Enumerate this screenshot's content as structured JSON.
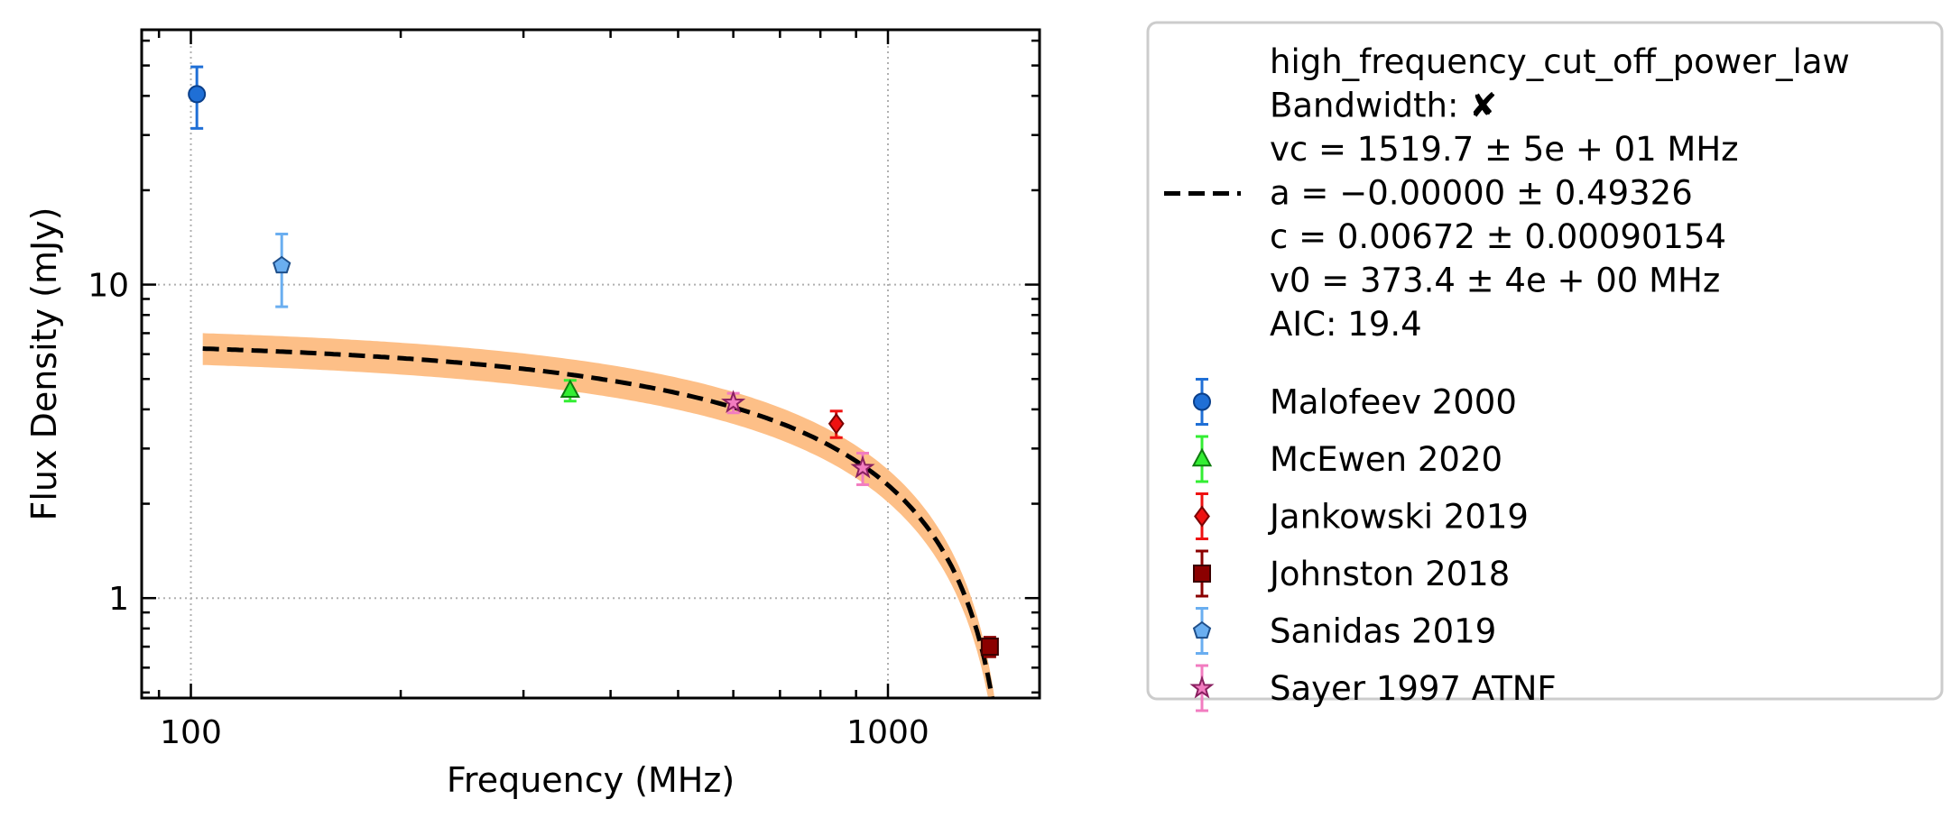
{
  "chart_data": {
    "type": "scatter",
    "xlabel": "Frequency (MHz)",
    "ylabel": "Flux Density (mJy)",
    "x_scale": "log",
    "y_scale": "log",
    "xlim": [
      85,
      1650
    ],
    "ylim": [
      0.48,
      65
    ],
    "x_ticks": [
      {
        "value": 100,
        "label": "100"
      },
      {
        "value": 1000,
        "label": "1000"
      }
    ],
    "y_ticks": [
      {
        "value": 1,
        "label": "1"
      },
      {
        "value": 10,
        "label": "10"
      }
    ],
    "grid": "dotted major gridlines",
    "legend_position": "outside right",
    "fit": {
      "name": "high_frequency_cut_off_power_law",
      "lines": [
        "high_frequency_cut_off_power_law",
        "Bandwidth: ✘",
        "vc = 1519.7 ± 5e + 01 MHz",
        "a = −0.00000 ± 0.49326",
        "c = 0.00672 ± 0.00090154",
        "v0 = 373.4 ± 4e + 00 MHz",
        "AIC: 19.4"
      ],
      "vc": 1519.7,
      "a": 0.0,
      "c": 0.00672,
      "v0": 373.4,
      "x_range": [
        104,
        1460
      ],
      "band_color": "#fdbf87",
      "line_color": "#000000"
    },
    "series": [
      {
        "name": "Malofeev 2000",
        "marker": "circle",
        "color": "#1f6fd6",
        "edge": "#0a3f8a",
        "points": [
          {
            "x": 102,
            "y": 40.5,
            "ylo": 31.5,
            "yhi": 49.5
          }
        ]
      },
      {
        "name": "McEwen 2020",
        "marker": "triangle",
        "color": "#33ee33",
        "edge": "#0f7a0f",
        "points": [
          {
            "x": 350,
            "y": 4.6,
            "ylo": 4.25,
            "yhi": 4.95
          }
        ]
      },
      {
        "name": "Jankowski 2019",
        "marker": "diamond",
        "color": "#ee1111",
        "edge": "#7a0000",
        "points": [
          {
            "x": 843,
            "y": 3.6,
            "ylo": 3.25,
            "yhi": 3.95
          }
        ]
      },
      {
        "name": "Johnston 2018",
        "marker": "square",
        "color": "#8b0000",
        "edge": "#3a0000",
        "points": [
          {
            "x": 1400,
            "y": 0.7,
            "ylo": 0.65,
            "yhi": 0.75
          }
        ]
      },
      {
        "name": "Sanidas 2019",
        "marker": "pentagon",
        "color": "#6aaef0",
        "edge": "#1f4f8a",
        "points": [
          {
            "x": 135,
            "y": 11.5,
            "ylo": 8.5,
            "yhi": 14.5
          }
        ]
      },
      {
        "name": "Sayer 1997 ATNF",
        "marker": "star",
        "color": "#f27cc0",
        "edge": "#8a2060",
        "points": [
          {
            "x": 600,
            "y": 4.2,
            "ylo": 3.9,
            "yhi": 4.5
          },
          {
            "x": 920,
            "y": 2.6,
            "ylo": 2.3,
            "yhi": 2.9
          }
        ]
      }
    ]
  }
}
